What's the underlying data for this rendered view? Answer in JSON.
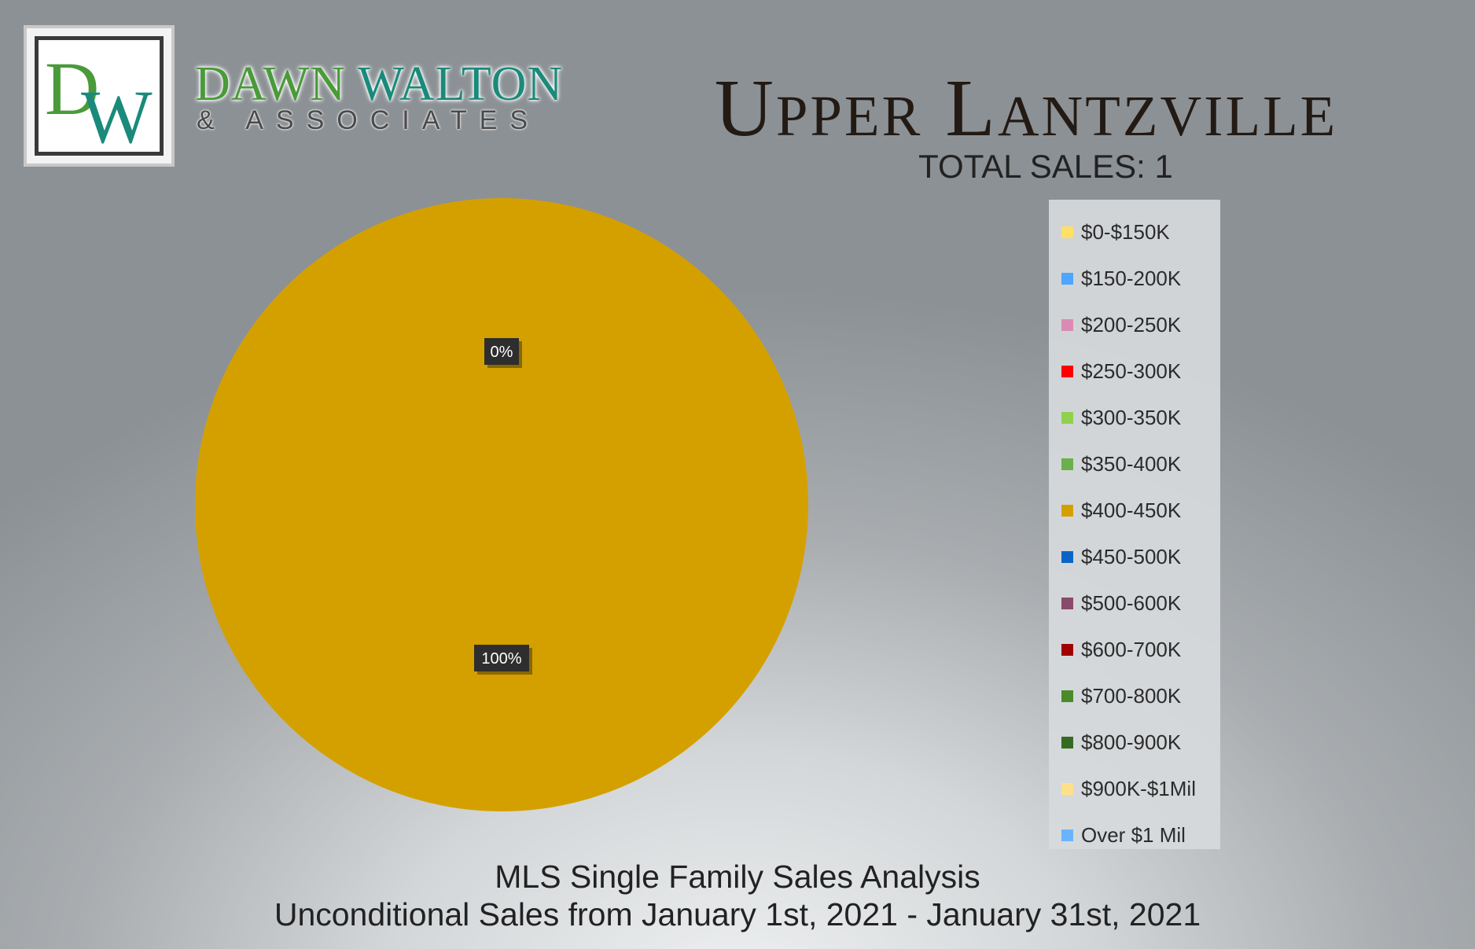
{
  "brand": {
    "logo_letters": "DW",
    "name_first": "DAWN",
    "name_last": "WALTON",
    "name_sub": "& ASSOCIATES"
  },
  "header": {
    "title": "Upper Lantzville",
    "total_sales": "TOTAL SALES: 1"
  },
  "footer": {
    "line1": "MLS Single Family Sales Analysis",
    "line2": "Unconditional Sales from January 1st, 2021 - January 31st, 2021"
  },
  "chart_data": {
    "type": "pie",
    "title": "",
    "legend_position": "right",
    "slices": [
      {
        "label": "$0-$150K",
        "value": 0,
        "color": "#ffe066"
      },
      {
        "label": "$150-200K",
        "value": 0,
        "color": "#4da6ff"
      },
      {
        "label": "$200-250K",
        "value": 0,
        "color": "#d98cb3"
      },
      {
        "label": "$250-300K",
        "value": 0,
        "color": "#ff0000"
      },
      {
        "label": "$300-350K",
        "value": 0,
        "color": "#8fd14f"
      },
      {
        "label": "$350-400K",
        "value": 0,
        "color": "#6ab04c"
      },
      {
        "label": "$400-450K",
        "value": 1,
        "color": "#d4a000"
      },
      {
        "label": "$450-500K",
        "value": 0,
        "color": "#0a64c8"
      },
      {
        "label": "$500-600K",
        "value": 0,
        "color": "#8a4a6a"
      },
      {
        "label": "$600-700K",
        "value": 0,
        "color": "#a00000"
      },
      {
        "label": "$700-800K",
        "value": 0,
        "color": "#4a8a2a"
      },
      {
        "label": "$800-900K",
        "value": 0,
        "color": "#356a22"
      },
      {
        "label": "$900K-$1Mil",
        "value": 0,
        "color": "#ffe08a"
      },
      {
        "label": "Over $1 Mil",
        "value": 0,
        "color": "#6ab4ff"
      }
    ],
    "data_labels": [
      {
        "text": "0%"
      },
      {
        "text": "100%"
      }
    ]
  }
}
